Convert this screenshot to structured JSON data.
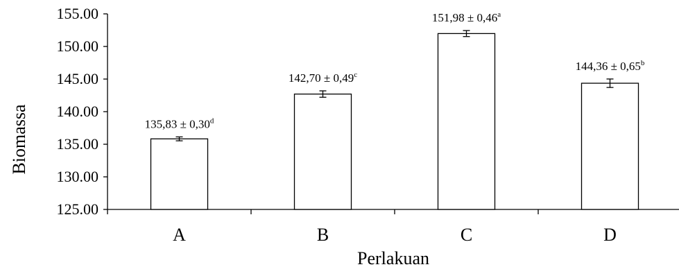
{
  "chart_data": {
    "type": "bar",
    "categories": [
      "A",
      "B",
      "C",
      "D"
    ],
    "values": [
      135.83,
      142.7,
      151.98,
      144.36
    ],
    "errors": [
      0.3,
      0.49,
      0.46,
      0.65
    ],
    "data_labels": [
      {
        "text": "135,83 ± 0,30",
        "sup": "d"
      },
      {
        "text": "142,70 ± 0,49",
        "sup": "c"
      },
      {
        "text": "151,98 ± 0,46",
        "sup": "a"
      },
      {
        "text": "144,36 ± 0,65",
        "sup": "b"
      }
    ],
    "yticks": [
      "125.00",
      "130.00",
      "135.00",
      "140.00",
      "145.00",
      "150.00",
      "155.00"
    ],
    "ylim": [
      125,
      155
    ],
    "xlabel": "Perlakuan",
    "ylabel": "Biomassa",
    "title": "",
    "grid": false,
    "legend": "none"
  },
  "colors": {
    "bar_fill": "#ffffff",
    "bar_stroke": "#000000",
    "axis": "#000000"
  }
}
